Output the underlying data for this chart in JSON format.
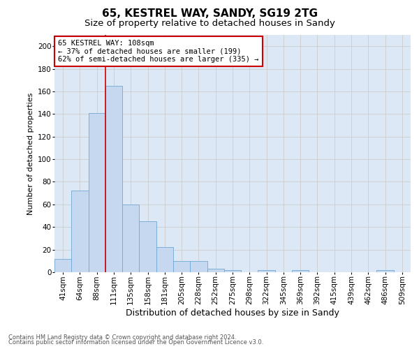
{
  "title": "65, KESTREL WAY, SANDY, SG19 2TG",
  "subtitle": "Size of property relative to detached houses in Sandy",
  "xlabel": "Distribution of detached houses by size in Sandy",
  "ylabel": "Number of detached properties",
  "footnote1": "Contains HM Land Registry data © Crown copyright and database right 2024.",
  "footnote2": "Contains public sector information licensed under the Open Government Licence v3.0.",
  "bin_labels": [
    "41sqm",
    "64sqm",
    "88sqm",
    "111sqm",
    "135sqm",
    "158sqm",
    "181sqm",
    "205sqm",
    "228sqm",
    "252sqm",
    "275sqm",
    "298sqm",
    "322sqm",
    "345sqm",
    "369sqm",
    "392sqm",
    "415sqm",
    "439sqm",
    "462sqm",
    "486sqm",
    "509sqm"
  ],
  "bar_values": [
    12,
    72,
    141,
    165,
    60,
    45,
    22,
    10,
    10,
    3,
    2,
    0,
    2,
    0,
    2,
    0,
    0,
    0,
    0,
    2,
    0
  ],
  "bar_color": "#c5d8ef",
  "bar_edge_color": "#6fa8d4",
  "vline_x": 2.5,
  "vline_color": "#cc0000",
  "annotation_line1": "65 KESTREL WAY: 108sqm",
  "annotation_line2": "← 37% of detached houses are smaller (199)",
  "annotation_line3": "62% of semi-detached houses are larger (335) →",
  "annotation_box_color": "#cc0000",
  "annotation_box_facecolor": "white",
  "ylim": [
    0,
    210
  ],
  "yticks": [
    0,
    20,
    40,
    60,
    80,
    100,
    120,
    140,
    160,
    180,
    200
  ],
  "grid_color": "#cccccc",
  "bg_color": "#dce8f5",
  "title_fontsize": 11,
  "subtitle_fontsize": 9.5,
  "xlabel_fontsize": 9,
  "ylabel_fontsize": 8,
  "tick_fontsize": 7.5,
  "footnote_fontsize": 6
}
